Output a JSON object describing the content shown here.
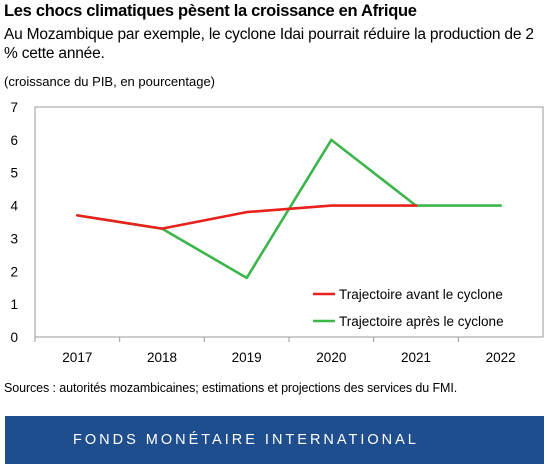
{
  "header": {
    "title": "Les chocs climatiques pèsent la croissance en Afrique",
    "subtitle": "Au Mozambique par exemple, le cyclone Idai pourrait réduire la production de 2 % cette année.",
    "unit_note": "(croissance du PIB, en pourcentage)"
  },
  "chart_data": {
    "type": "line",
    "title": "Les chocs climatiques pèsent la croissance en Afrique",
    "xlabel": "",
    "ylabel": "",
    "categories": [
      "2017",
      "2018",
      "2019",
      "2020",
      "2021",
      "2022"
    ],
    "ylim": [
      0,
      7
    ],
    "yticks": [
      0,
      1,
      2,
      3,
      4,
      5,
      6,
      7
    ],
    "grid": false,
    "legend_position": "bottom-right",
    "series": [
      {
        "name": "Trajectoire avant le cyclone",
        "color": "#e8211c",
        "values": [
          3.7,
          3.3,
          3.8,
          4.0,
          4.0,
          null
        ]
      },
      {
        "name": "Trajectoire après le cyclone",
        "color": "#3cb54a",
        "values": [
          3.7,
          3.3,
          1.8,
          6.0,
          4.0,
          4.0
        ]
      }
    ]
  },
  "source_note": "Sources : autorités mozambicaines; estimations et projections des services du FMI.",
  "footer": {
    "label": "FONDS MONÉTAIRE INTERNATIONAL",
    "color": "#1f4e8e"
  }
}
